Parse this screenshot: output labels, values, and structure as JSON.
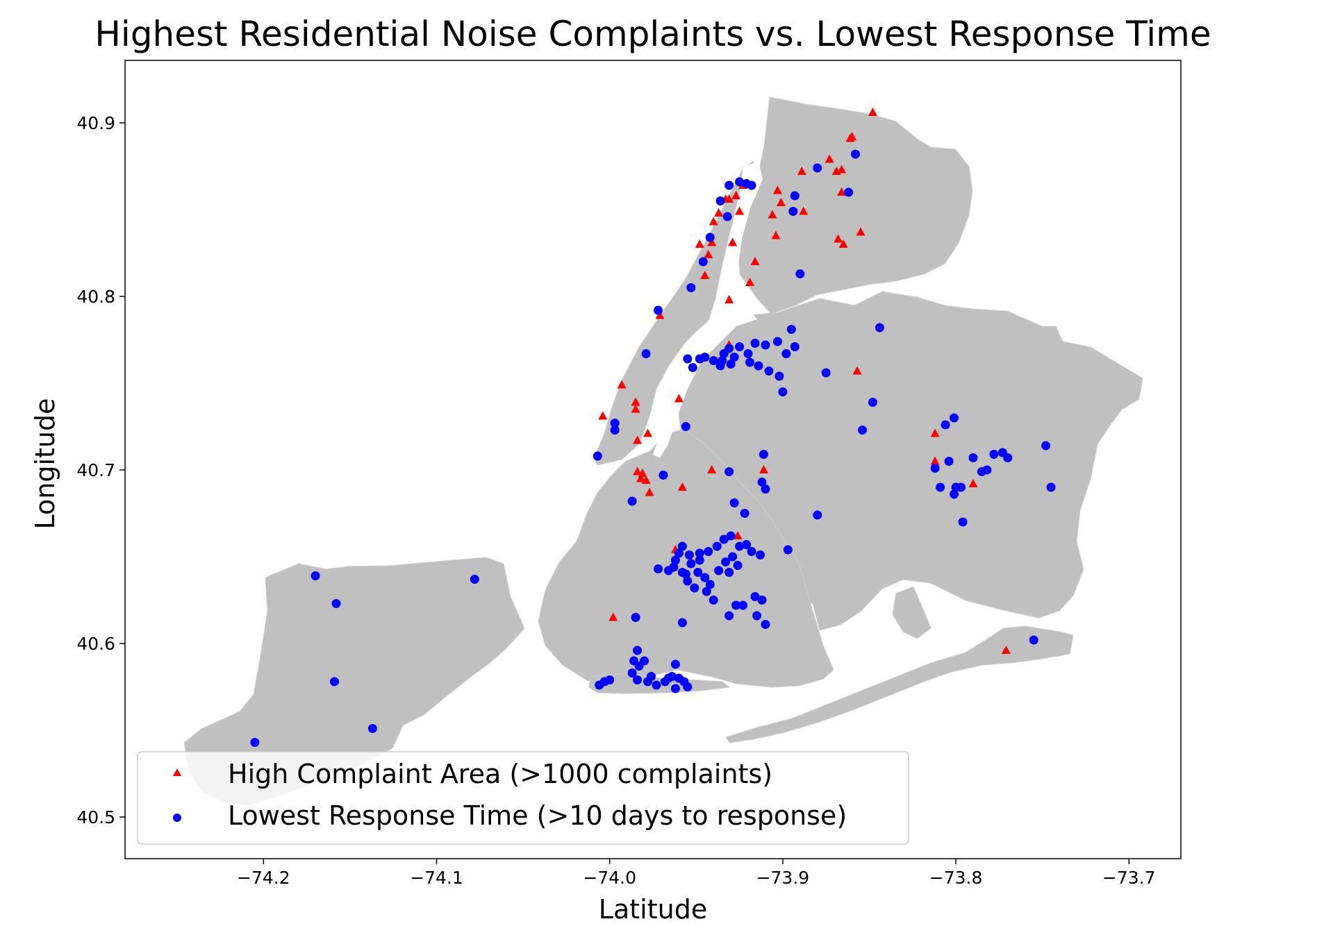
{
  "chart_data": {
    "type": "scatter",
    "title": "Highest Residential Noise Complaints vs. Lowest Response Time",
    "xlabel": "Latitude",
    "ylabel": "Longitude",
    "xlim": [
      -74.28,
      -73.67
    ],
    "ylim": [
      40.476,
      40.936
    ],
    "xticks": [
      -74.2,
      -74.1,
      -74.0,
      -73.9,
      -73.8,
      -73.7
    ],
    "xtick_labels": [
      "−74.2",
      "−74.1",
      "−74.0",
      "−73.9",
      "−73.8",
      "−73.7"
    ],
    "yticks": [
      40.5,
      40.6,
      40.7,
      40.8,
      40.9
    ],
    "ytick_labels": [
      "40.5",
      "40.6",
      "40.7",
      "40.8",
      "40.9"
    ],
    "grid": false,
    "legend_position": "lower-left",
    "basemap": "New York City borough outlines (gray)",
    "series": [
      {
        "name": "High Complaint Area (>1000 complaints)",
        "marker": "triangle",
        "color": "#ff0000",
        "points": [
          [
            -73.848,
            40.906
          ],
          [
            -73.86,
            40.892
          ],
          [
            -73.861,
            40.891
          ],
          [
            -73.873,
            40.879
          ],
          [
            -73.869,
            40.872
          ],
          [
            -73.866,
            40.873
          ],
          [
            -73.866,
            40.86
          ],
          [
            -73.889,
            40.872
          ],
          [
            -73.903,
            40.861
          ],
          [
            -73.901,
            40.854
          ],
          [
            -73.906,
            40.847
          ],
          [
            -73.888,
            40.849
          ],
          [
            -73.855,
            40.837
          ],
          [
            -73.868,
            40.833
          ],
          [
            -73.865,
            40.83
          ],
          [
            -73.904,
            40.835
          ],
          [
            -73.916,
            40.82
          ],
          [
            -73.919,
            40.808
          ],
          [
            -73.933,
            40.856
          ],
          [
            -73.931,
            40.856
          ],
          [
            -73.937,
            40.848
          ],
          [
            -73.925,
            40.849
          ],
          [
            -73.927,
            40.858
          ],
          [
            -73.923,
            40.864
          ],
          [
            -73.94,
            40.843
          ],
          [
            -73.948,
            40.83
          ],
          [
            -73.941,
            40.831
          ],
          [
            -73.943,
            40.824
          ],
          [
            -73.929,
            40.831
          ],
          [
            -73.945,
            40.812
          ],
          [
            -73.931,
            40.798
          ],
          [
            -73.971,
            40.789
          ],
          [
            -73.993,
            40.749
          ],
          [
            -73.985,
            40.739
          ],
          [
            -73.985,
            40.735
          ],
          [
            -73.978,
            40.721
          ],
          [
            -73.984,
            40.717
          ],
          [
            -73.96,
            40.741
          ],
          [
            -74.004,
            40.731
          ],
          [
            -73.984,
            40.699
          ],
          [
            -73.981,
            40.698
          ],
          [
            -73.982,
            40.695
          ],
          [
            -73.979,
            40.694
          ],
          [
            -73.977,
            40.687
          ],
          [
            -73.958,
            40.69
          ],
          [
            -73.941,
            40.7
          ],
          [
            -73.911,
            40.7
          ],
          [
            -73.931,
            40.772
          ],
          [
            -73.857,
            40.757
          ],
          [
            -73.962,
            40.654
          ],
          [
            -73.926,
            40.662
          ],
          [
            -73.998,
            40.615
          ],
          [
            -73.812,
            40.721
          ],
          [
            -73.812,
            40.705
          ],
          [
            -73.79,
            40.692
          ],
          [
            -73.771,
            40.596
          ]
        ]
      },
      {
        "name": "Lowest Response Time (>10 days to response)",
        "marker": "circle",
        "color": "#0000ff",
        "points": [
          [
            -73.858,
            40.882
          ],
          [
            -73.88,
            40.874
          ],
          [
            -73.862,
            40.86
          ],
          [
            -73.925,
            40.866
          ],
          [
            -73.931,
            40.864
          ],
          [
            -73.921,
            40.865
          ],
          [
            -73.918,
            40.864
          ],
          [
            -73.936,
            40.855
          ],
          [
            -73.932,
            40.846
          ],
          [
            -73.893,
            40.858
          ],
          [
            -73.894,
            40.849
          ],
          [
            -73.942,
            40.834
          ],
          [
            -73.946,
            40.82
          ],
          [
            -73.89,
            40.813
          ],
          [
            -73.953,
            40.805
          ],
          [
            -73.972,
            40.792
          ],
          [
            -73.844,
            40.782
          ],
          [
            -73.895,
            40.781
          ],
          [
            -73.903,
            40.774
          ],
          [
            -73.91,
            40.772
          ],
          [
            -73.916,
            40.773
          ],
          [
            -73.92,
            40.767
          ],
          [
            -73.925,
            40.771
          ],
          [
            -73.931,
            40.77
          ],
          [
            -73.934,
            40.767
          ],
          [
            -73.935,
            40.763
          ],
          [
            -73.94,
            40.763
          ],
          [
            -73.945,
            40.765
          ],
          [
            -73.948,
            40.764
          ],
          [
            -73.952,
            40.759
          ],
          [
            -73.955,
            40.764
          ],
          [
            -73.936,
            40.76
          ],
          [
            -73.928,
            40.765
          ],
          [
            -73.93,
            40.761
          ],
          [
            -73.919,
            40.762
          ],
          [
            -73.914,
            40.76
          ],
          [
            -73.908,
            40.757
          ],
          [
            -73.902,
            40.754
          ],
          [
            -73.9,
            40.745
          ],
          [
            -73.893,
            40.771
          ],
          [
            -73.898,
            40.767
          ],
          [
            -73.875,
            40.756
          ],
          [
            -73.979,
            40.767
          ],
          [
            -73.848,
            40.739
          ],
          [
            -73.854,
            40.723
          ],
          [
            -73.997,
            40.727
          ],
          [
            -73.997,
            40.723
          ],
          [
            -73.956,
            40.725
          ],
          [
            -73.911,
            40.709
          ],
          [
            -74.007,
            40.708
          ],
          [
            -73.969,
            40.697
          ],
          [
            -73.987,
            40.682
          ],
          [
            -73.931,
            40.699
          ],
          [
            -73.912,
            40.693
          ],
          [
            -73.91,
            40.689
          ],
          [
            -73.928,
            40.681
          ],
          [
            -73.922,
            40.675
          ],
          [
            -73.88,
            40.674
          ],
          [
            -73.897,
            40.654
          ],
          [
            -73.801,
            40.73
          ],
          [
            -73.806,
            40.726
          ],
          [
            -73.812,
            40.701
          ],
          [
            -73.804,
            40.705
          ],
          [
            -73.809,
            40.69
          ],
          [
            -73.8,
            40.69
          ],
          [
            -73.797,
            40.69
          ],
          [
            -73.801,
            40.686
          ],
          [
            -73.79,
            40.707
          ],
          [
            -73.785,
            40.699
          ],
          [
            -73.782,
            40.7
          ],
          [
            -73.778,
            40.709
          ],
          [
            -73.773,
            40.71
          ],
          [
            -73.77,
            40.707
          ],
          [
            -73.748,
            40.714
          ],
          [
            -73.745,
            40.69
          ],
          [
            -73.796,
            40.67
          ],
          [
            -73.755,
            40.602
          ],
          [
            -73.93,
            40.662
          ],
          [
            -73.934,
            40.66
          ],
          [
            -73.938,
            40.656
          ],
          [
            -73.943,
            40.653
          ],
          [
            -73.948,
            40.652
          ],
          [
            -73.954,
            40.651
          ],
          [
            -73.958,
            40.656
          ],
          [
            -73.96,
            40.652
          ],
          [
            -73.962,
            40.648
          ],
          [
            -73.963,
            40.644
          ],
          [
            -73.966,
            40.642
          ],
          [
            -73.958,
            40.641
          ],
          [
            -73.953,
            40.646
          ],
          [
            -73.949,
            40.641
          ],
          [
            -73.945,
            40.638
          ],
          [
            -73.942,
            40.634
          ],
          [
            -73.937,
            40.642
          ],
          [
            -73.933,
            40.647
          ],
          [
            -73.929,
            40.65
          ],
          [
            -73.925,
            40.656
          ],
          [
            -73.921,
            40.657
          ],
          [
            -73.918,
            40.653
          ],
          [
            -73.913,
            40.651
          ],
          [
            -73.926,
            40.645
          ],
          [
            -73.931,
            40.641
          ],
          [
            -73.955,
            40.636
          ],
          [
            -73.951,
            40.632
          ],
          [
            -73.944,
            40.63
          ],
          [
            -73.94,
            40.625
          ],
          [
            -73.948,
            40.648
          ],
          [
            -73.972,
            40.643
          ],
          [
            -73.956,
            40.64
          ],
          [
            -73.927,
            40.622
          ],
          [
            -73.923,
            40.622
          ],
          [
            -73.916,
            40.627
          ],
          [
            -73.912,
            40.625
          ],
          [
            -73.915,
            40.616
          ],
          [
            -73.91,
            40.611
          ],
          [
            -73.931,
            40.616
          ],
          [
            -73.958,
            40.612
          ],
          [
            -73.985,
            40.615
          ],
          [
            -73.984,
            40.596
          ],
          [
            -73.986,
            40.59
          ],
          [
            -73.983,
            40.587
          ],
          [
            -73.98,
            40.59
          ],
          [
            -73.987,
            40.583
          ],
          [
            -73.984,
            40.579
          ],
          [
            -73.978,
            40.578
          ],
          [
            -73.973,
            40.576
          ],
          [
            -73.968,
            40.578
          ],
          [
            -73.964,
            40.581
          ],
          [
            -73.96,
            40.58
          ],
          [
            -73.957,
            40.578
          ],
          [
            -73.955,
            40.575
          ],
          [
            -73.962,
            40.574
          ],
          [
            -73.966,
            40.58
          ],
          [
            -73.976,
            40.581
          ],
          [
            -73.962,
            40.588
          ],
          [
            -74.003,
            40.578
          ],
          [
            -74.0,
            40.579
          ],
          [
            -74.006,
            40.576
          ],
          [
            -74.17,
            40.639
          ],
          [
            -74.158,
            40.623
          ],
          [
            -74.159,
            40.578
          ],
          [
            -74.078,
            40.637
          ],
          [
            -74.137,
            40.551
          ],
          [
            -74.205,
            40.543
          ]
        ]
      }
    ]
  }
}
